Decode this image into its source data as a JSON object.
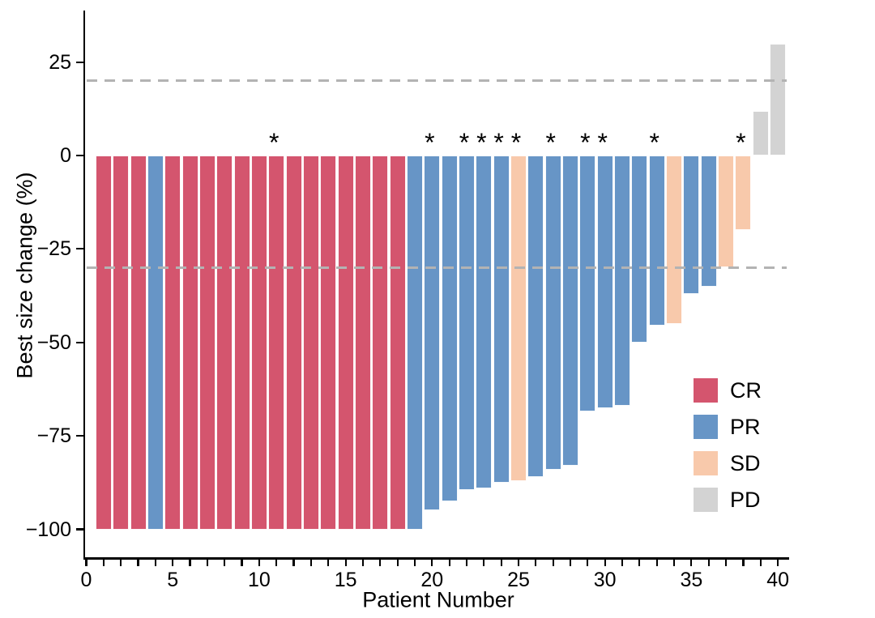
{
  "chart_data": {
    "type": "bar",
    "subtype": "waterfall",
    "title": "",
    "xlabel": "Patient Number",
    "ylabel": "Best size change (%)",
    "xlim": [
      0,
      40.7
    ],
    "ylim": [
      -108,
      39
    ],
    "x_major_ticks": [
      0,
      5,
      10,
      15,
      20,
      25,
      30,
      35,
      40
    ],
    "x_minor_tick_every": 1,
    "x_minor_tick_max": 40,
    "y_ticks": [
      25,
      0,
      -25,
      -50,
      -75,
      -100
    ],
    "grid": false,
    "reference_lines": [
      {
        "y": 20,
        "style": "dashed",
        "color": "#b3b3b3"
      },
      {
        "y": -30,
        "style": "dashed",
        "color": "#b3b3b3"
      }
    ],
    "annotation_symbol": "*",
    "legend": {
      "position": "inside-right",
      "entries": [
        {
          "label": "CR",
          "color": "#d4556e"
        },
        {
          "label": "PR",
          "color": "#6795c6"
        },
        {
          "label": "SD",
          "color": "#f8c9ab"
        },
        {
          "label": "PD",
          "color": "#d3d3d3"
        }
      ]
    },
    "patients": [
      {
        "n": 1,
        "value": -100,
        "response": "CR",
        "star": false
      },
      {
        "n": 2,
        "value": -100,
        "response": "CR",
        "star": false
      },
      {
        "n": 3,
        "value": -100,
        "response": "CR",
        "star": false
      },
      {
        "n": 4,
        "value": -100,
        "response": "PR",
        "star": false
      },
      {
        "n": 5,
        "value": -100,
        "response": "CR",
        "star": false
      },
      {
        "n": 6,
        "value": -100,
        "response": "CR",
        "star": false
      },
      {
        "n": 7,
        "value": -100,
        "response": "CR",
        "star": false
      },
      {
        "n": 8,
        "value": -100,
        "response": "CR",
        "star": false
      },
      {
        "n": 9,
        "value": -100,
        "response": "CR",
        "star": false
      },
      {
        "n": 10,
        "value": -100,
        "response": "CR",
        "star": false
      },
      {
        "n": 11,
        "value": -100,
        "response": "CR",
        "star": true
      },
      {
        "n": 12,
        "value": -100,
        "response": "CR",
        "star": false
      },
      {
        "n": 13,
        "value": -100,
        "response": "CR",
        "star": false
      },
      {
        "n": 14,
        "value": -100,
        "response": "CR",
        "star": false
      },
      {
        "n": 15,
        "value": -100,
        "response": "CR",
        "star": false
      },
      {
        "n": 16,
        "value": -100,
        "response": "CR",
        "star": false
      },
      {
        "n": 17,
        "value": -100,
        "response": "CR",
        "star": false
      },
      {
        "n": 18,
        "value": -100,
        "response": "CR",
        "star": false
      },
      {
        "n": 19,
        "value": -100,
        "response": "PR",
        "star": false
      },
      {
        "n": 20,
        "value": -95,
        "response": "PR",
        "star": true
      },
      {
        "n": 21,
        "value": -92.5,
        "response": "PR",
        "star": false
      },
      {
        "n": 22,
        "value": -89.5,
        "response": "PR",
        "star": true
      },
      {
        "n": 23,
        "value": -89,
        "response": "PR",
        "star": true
      },
      {
        "n": 24,
        "value": -87.5,
        "response": "PR",
        "star": true
      },
      {
        "n": 25,
        "value": -87,
        "response": "SD",
        "star": true
      },
      {
        "n": 26,
        "value": -86,
        "response": "PR",
        "star": false
      },
      {
        "n": 27,
        "value": -84,
        "response": "PR",
        "star": true
      },
      {
        "n": 28,
        "value": -83,
        "response": "PR",
        "star": false
      },
      {
        "n": 29,
        "value": -68.5,
        "response": "PR",
        "star": true
      },
      {
        "n": 30,
        "value": -67.5,
        "response": "PR",
        "star": true
      },
      {
        "n": 31,
        "value": -67,
        "response": "PR",
        "star": false
      },
      {
        "n": 32,
        "value": -50,
        "response": "PR",
        "star": false
      },
      {
        "n": 33,
        "value": -45.5,
        "response": "PR",
        "star": true
      },
      {
        "n": 34,
        "value": -45,
        "response": "SD",
        "star": false
      },
      {
        "n": 35,
        "value": -37,
        "response": "PR",
        "star": false
      },
      {
        "n": 36,
        "value": -35,
        "response": "PR",
        "star": false
      },
      {
        "n": 37,
        "value": -30,
        "response": "SD",
        "star": false
      },
      {
        "n": 38,
        "value": -20,
        "response": "SD",
        "star": true
      },
      {
        "n": 39,
        "value": 12,
        "response": "PD",
        "star": false
      },
      {
        "n": 40,
        "value": 30,
        "response": "PD",
        "star": false
      }
    ]
  },
  "colors": {
    "axis": "#000000",
    "text": "#000000",
    "reference_line": "#b3b3b3",
    "bar_edge": "#ffffff",
    "background": "#ffffff"
  }
}
